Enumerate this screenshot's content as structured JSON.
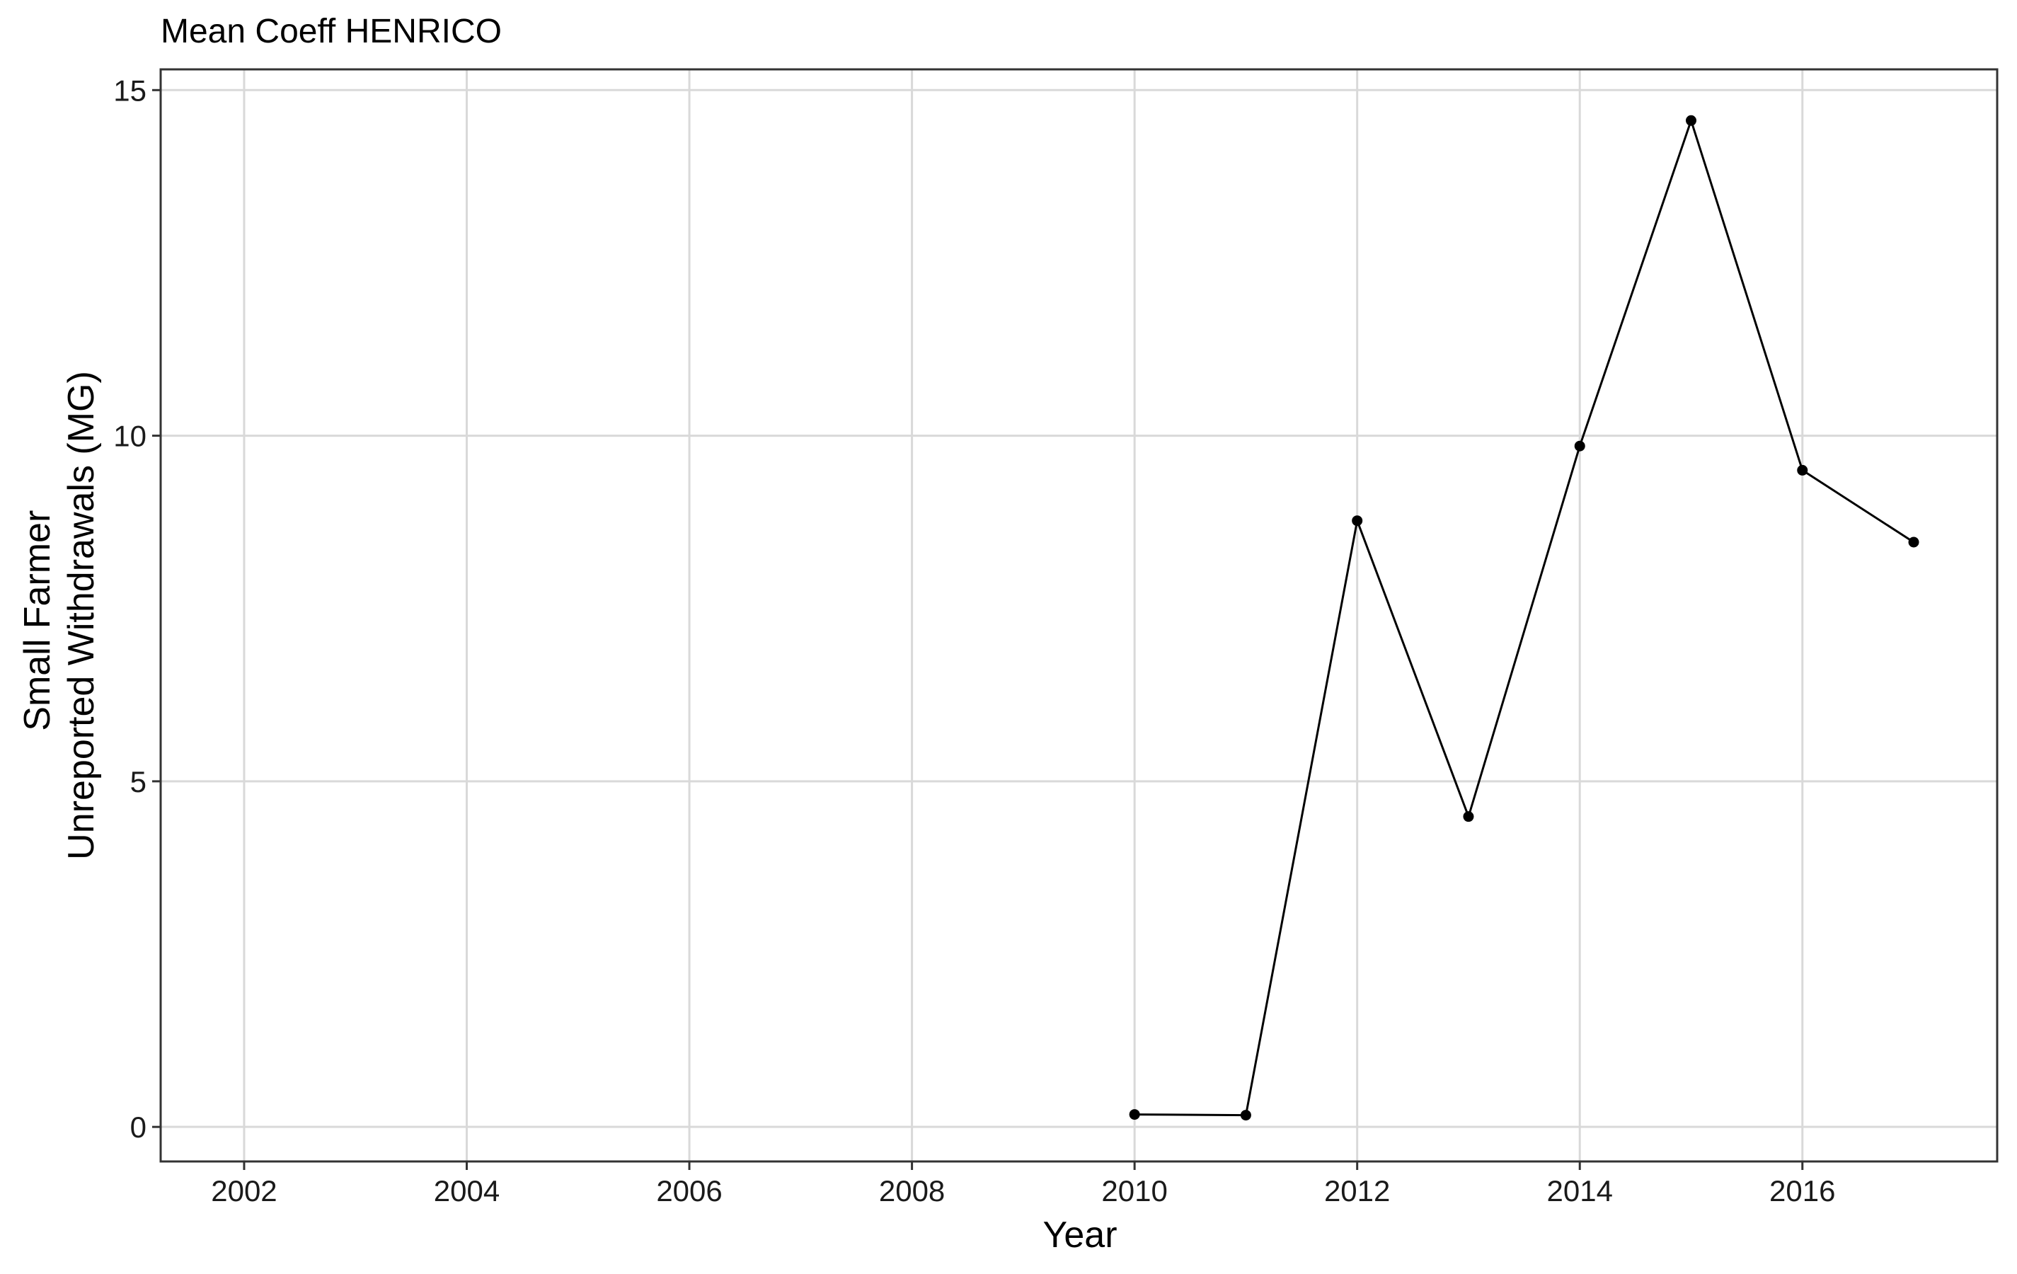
{
  "chart_data": {
    "type": "line",
    "title": "Mean Coeff HENRICO",
    "xlabel": "Year",
    "ylabel": [
      "Small Farmer",
      "Unreported Withdrawals (MG)"
    ],
    "xlim": [
      2001.25,
      2017.75
    ],
    "ylim": [
      -0.5,
      15.3
    ],
    "x_ticks": [
      2002,
      2004,
      2006,
      2008,
      2010,
      2012,
      2014,
      2016
    ],
    "y_ticks": [
      0,
      5,
      10,
      15
    ],
    "grid": true,
    "legend": "none",
    "series": [
      {
        "x": [
          2010,
          2011,
          2012,
          2013,
          2014,
          2015,
          2016,
          2017
        ],
        "values": [
          0.18,
          0.17,
          8.77,
          4.49,
          9.85,
          14.56,
          9.5,
          8.46
        ]
      }
    ],
    "colors": {
      "line": "#000000",
      "grid": "#d9d9d9",
      "panel_border": "#333333"
    }
  }
}
